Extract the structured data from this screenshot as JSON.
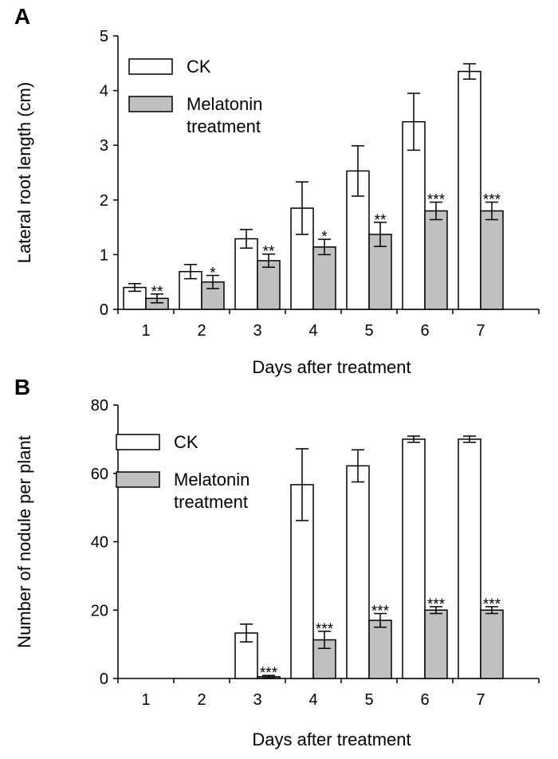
{
  "chart_data": [
    {
      "panel": "A",
      "type": "bar",
      "xlabel": "Days after treatment",
      "ylabel": "Lateral root length (cm)",
      "ylim": [
        0,
        5
      ],
      "yticks": [
        0,
        1,
        2,
        3,
        4,
        5
      ],
      "categories": [
        "1",
        "2",
        "3",
        "4",
        "5",
        "6",
        "7"
      ],
      "legend_position": "top-left",
      "series": [
        {
          "name": "CK",
          "color": "#ffffff",
          "values": [
            0.4,
            0.69,
            1.29,
            1.85,
            2.53,
            3.43,
            4.35
          ],
          "errors": [
            0.07,
            0.13,
            0.17,
            0.48,
            0.46,
            0.52,
            0.14
          ],
          "significance": [
            "",
            "",
            "",
            "",
            "",
            "",
            ""
          ]
        },
        {
          "name": "Melatonin treatment",
          "color": "#c0c0c0",
          "values": [
            0.2,
            0.5,
            0.89,
            1.14,
            1.37,
            1.8,
            1.8
          ],
          "errors": [
            0.08,
            0.12,
            0.12,
            0.14,
            0.22,
            0.16,
            0.16
          ],
          "significance": [
            "**",
            "*",
            "**",
            "*",
            "**",
            "***",
            "***"
          ]
        }
      ],
      "legend_lines": [
        [
          "CK"
        ],
        [
          "Melatonin",
          "treatment"
        ]
      ]
    },
    {
      "panel": "B",
      "type": "bar",
      "xlabel": "Days after treatment",
      "ylabel": "Number of nodule per plant",
      "ylim": [
        0,
        80
      ],
      "yticks": [
        0,
        20,
        40,
        60,
        80
      ],
      "categories": [
        "1",
        "2",
        "3",
        "4",
        "5",
        "6",
        "7"
      ],
      "legend_position": "top-left",
      "series": [
        {
          "name": "CK",
          "color": "#ffffff",
          "values": [
            0,
            0,
            13.3,
            56.7,
            62.2,
            70.0,
            70.0
          ],
          "errors": [
            0,
            0,
            2.6,
            10.5,
            4.7,
            0.9,
            0.9
          ],
          "significance": [
            "",
            "",
            "",
            "",
            "",
            "",
            ""
          ]
        },
        {
          "name": "Melatonin treatment",
          "color": "#c0c0c0",
          "values": [
            0,
            0,
            0.5,
            11.3,
            17.0,
            20.0,
            20.0
          ],
          "errors": [
            0,
            0,
            0.4,
            2.5,
            2.0,
            1.0,
            1.0
          ],
          "significance": [
            "",
            "",
            "***",
            "***",
            "***",
            "***",
            "***"
          ]
        }
      ],
      "legend_lines": [
        [
          "CK"
        ],
        [
          "Melatonin",
          "treatment"
        ]
      ]
    }
  ]
}
